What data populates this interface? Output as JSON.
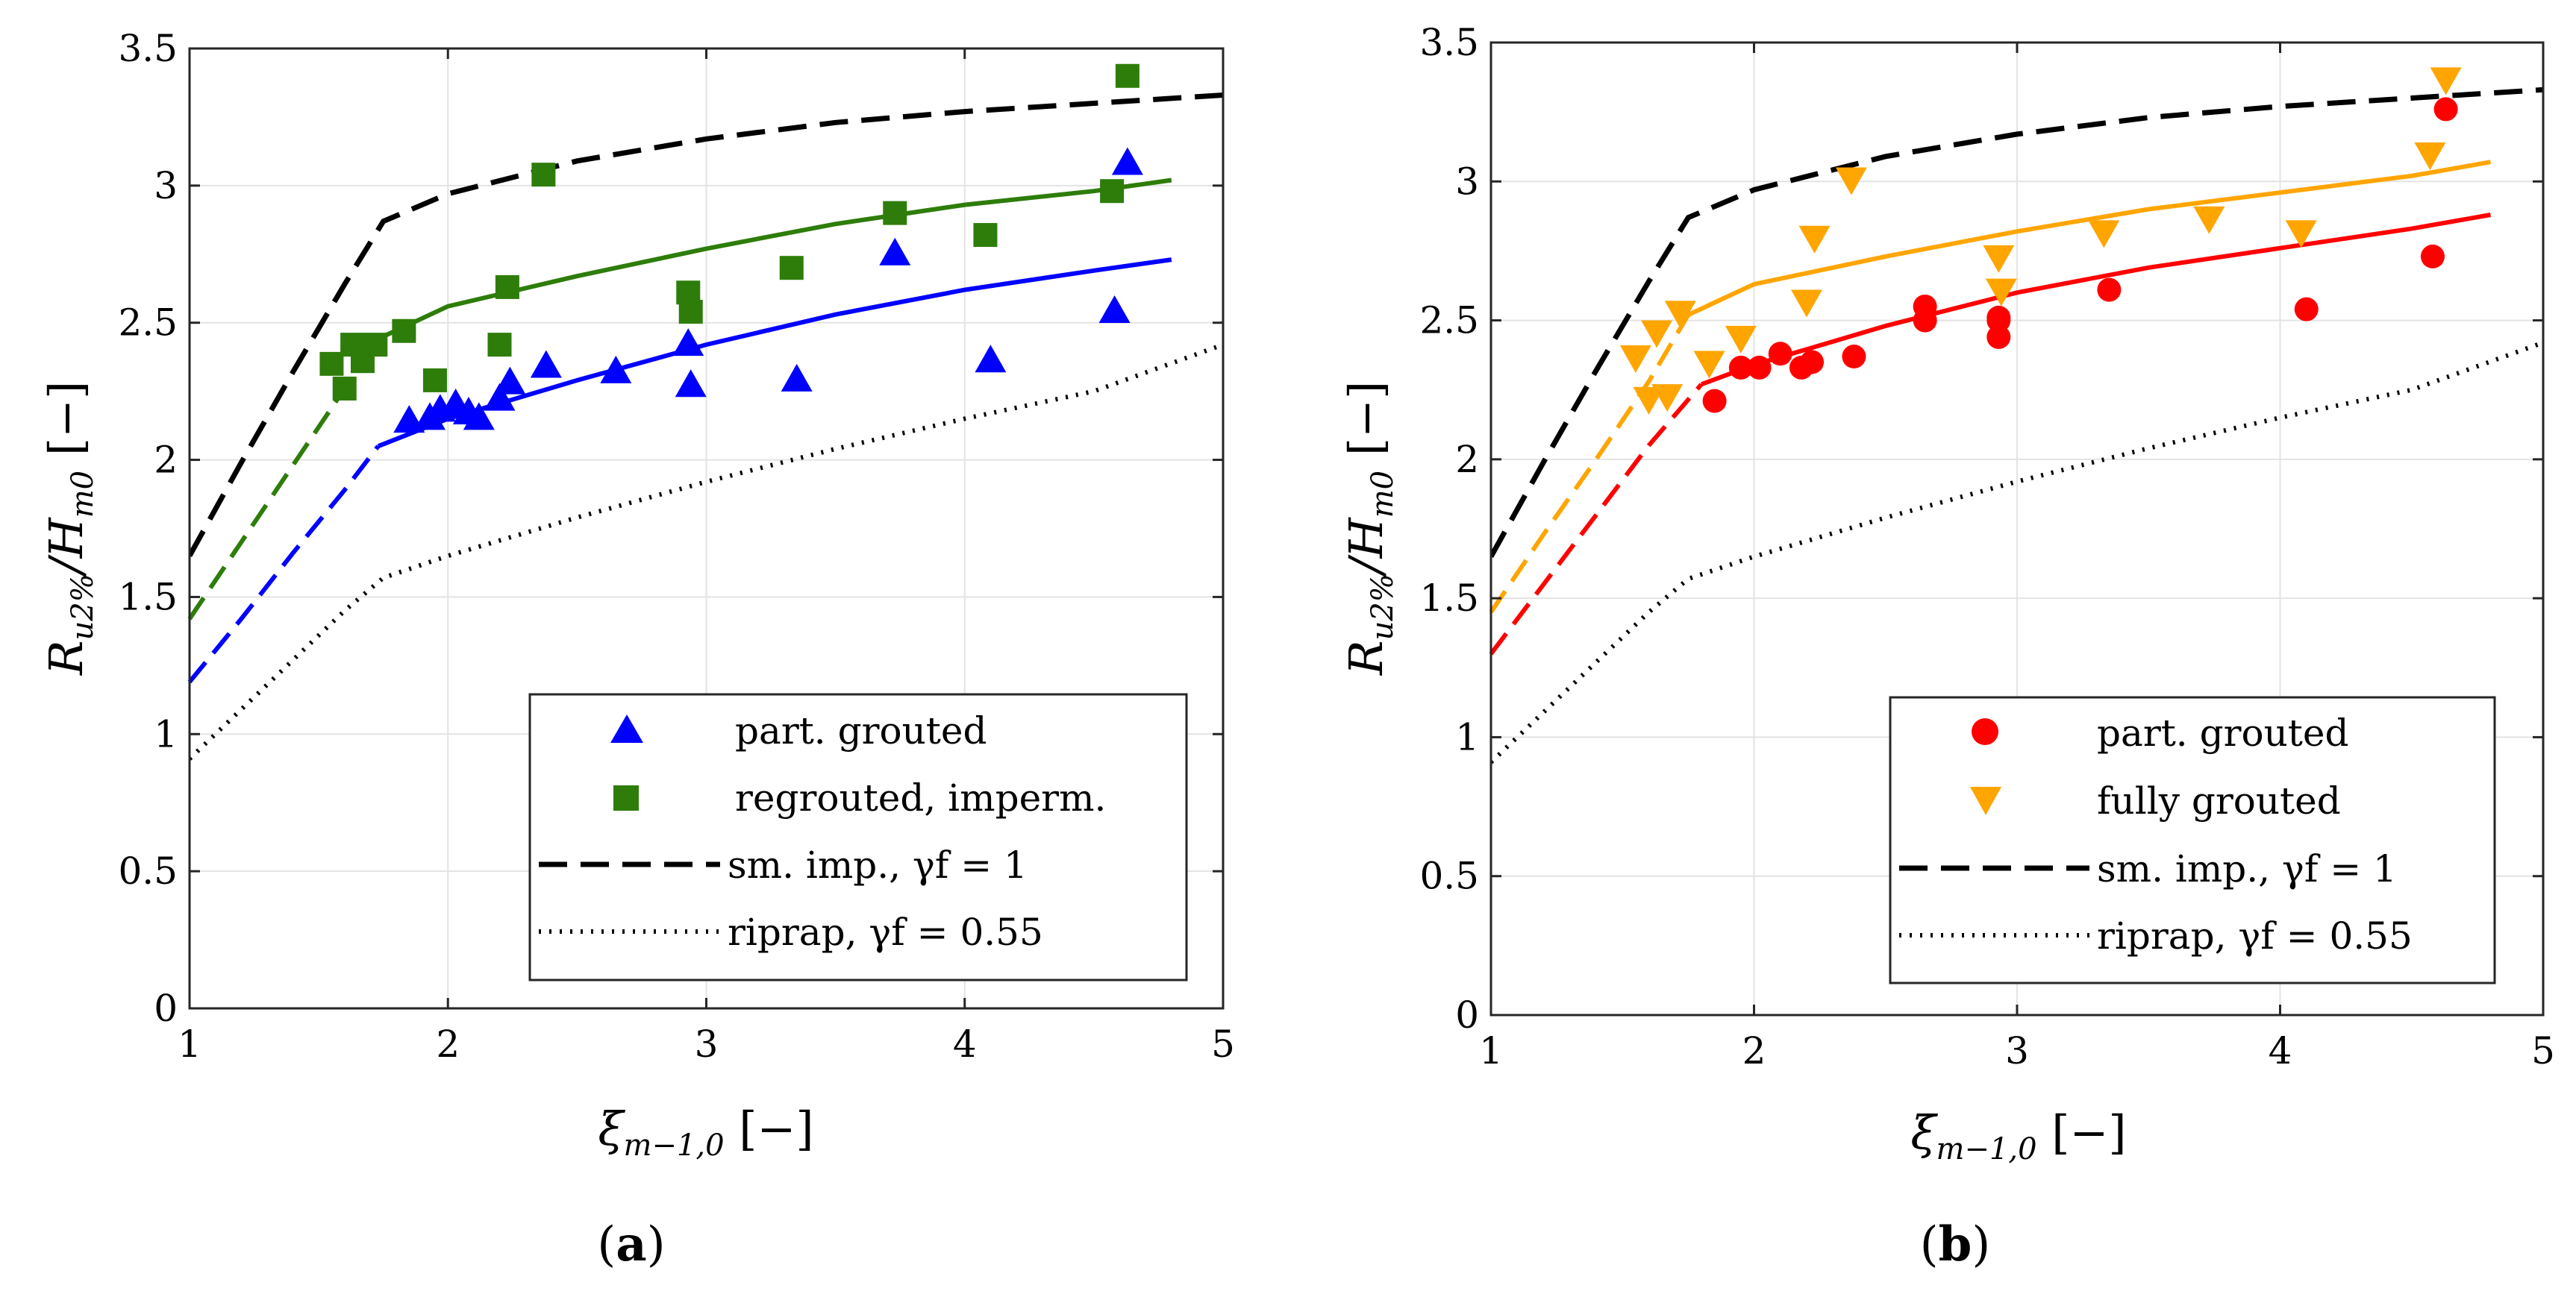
{
  "figure": {
    "captions": [
      "a",
      "b"
    ]
  },
  "chart_data": [
    {
      "type": "scatter",
      "title": "",
      "xlabel": "ξm−1,0 [−]",
      "ylabel": "Ru2%/Hm0 [−]",
      "xlim": [
        1,
        5
      ],
      "ylim": [
        0,
        3.5
      ],
      "x_ticks": [
        "1",
        "2",
        "3",
        "4",
        "5"
      ],
      "y_ticks": [
        "0",
        "0.5",
        "1",
        "1.5",
        "2",
        "2.5",
        "3",
        "3.5"
      ],
      "grid": true,
      "legend_position": "bottom-right",
      "series": [
        {
          "name": "part. grouted",
          "marker": "triangle-up",
          "color": "#0000ff",
          "x": [
            1.85,
            1.93,
            1.97,
            2.03,
            2.08,
            2.12,
            2.2,
            2.24,
            2.38,
            2.65,
            2.93,
            2.94,
            3.35,
            3.73,
            4.1,
            4.58,
            4.63
          ],
          "y": [
            2.14,
            2.15,
            2.18,
            2.2,
            2.17,
            2.15,
            2.22,
            2.28,
            2.34,
            2.32,
            2.42,
            2.27,
            2.29,
            2.75,
            2.36,
            2.54,
            3.08
          ]
        },
        {
          "name": "regrouted, imperm.",
          "marker": "square",
          "color": "#2e7d0a",
          "x": [
            1.55,
            1.6,
            1.63,
            1.67,
            1.72,
            1.83,
            1.95,
            2.2,
            2.23,
            2.37,
            2.93,
            2.94,
            3.33,
            3.73,
            4.08,
            4.57,
            4.63
          ],
          "y": [
            2.35,
            2.26,
            2.42,
            2.36,
            2.42,
            2.47,
            2.29,
            2.42,
            2.63,
            3.04,
            2.61,
            2.54,
            2.7,
            2.9,
            2.82,
            2.98,
            3.4
          ]
        },
        {
          "name": "sm. imp., γf = 1",
          "style": "dashed",
          "color": "#000000",
          "x": [
            1.0,
            1.2,
            1.4,
            1.6,
            1.75,
            2.0,
            2.5,
            3.0,
            3.5,
            4.0,
            4.5,
            5.0
          ],
          "y": [
            1.65,
            1.99,
            2.32,
            2.64,
            2.87,
            2.97,
            3.09,
            3.17,
            3.23,
            3.27,
            3.3,
            3.33
          ]
        },
        {
          "name": "riprap, γf = 0.55",
          "style": "dotted",
          "color": "#000000",
          "x": [
            1.0,
            1.2,
            1.4,
            1.6,
            1.75,
            2.0,
            2.5,
            3.0,
            3.5,
            4.0,
            4.5,
            5.0
          ],
          "y": [
            0.91,
            1.09,
            1.27,
            1.45,
            1.57,
            1.65,
            1.79,
            1.92,
            2.04,
            2.15,
            2.25,
            2.42
          ]
        }
      ],
      "fit_lines": [
        {
          "name": "part. grouted fit",
          "color": "#0000ff",
          "x": [
            1.0,
            1.2,
            1.4,
            1.6,
            1.73,
            2.0,
            2.5,
            3.0,
            3.5,
            4.0,
            4.5,
            4.8
          ],
          "y": [
            1.19,
            1.42,
            1.66,
            1.89,
            2.05,
            2.15,
            2.29,
            2.42,
            2.53,
            2.62,
            2.69,
            2.73
          ],
          "dashed_until_x": 1.73
        },
        {
          "name": "regrouted, imperm. fit",
          "color": "#2e7d0a",
          "x": [
            1.0,
            1.2,
            1.4,
            1.6,
            1.75,
            2.0,
            2.5,
            3.0,
            3.5,
            4.0,
            4.5,
            4.8
          ],
          "y": [
            1.42,
            1.7,
            1.98,
            2.26,
            2.45,
            2.56,
            2.67,
            2.77,
            2.86,
            2.93,
            2.98,
            3.02
          ],
          "dashed_until_x": 1.75
        }
      ]
    },
    {
      "type": "scatter",
      "title": "",
      "xlabel": "ξm−1,0 [−]",
      "ylabel": "Ru2%/Hm0 [−]",
      "xlim": [
        1,
        5
      ],
      "ylim": [
        0,
        3.5
      ],
      "x_ticks": [
        "1",
        "2",
        "3",
        "4",
        "5"
      ],
      "y_ticks": [
        "0",
        "0.5",
        "1",
        "1.5",
        "2",
        "2.5",
        "3",
        "3.5"
      ],
      "grid": true,
      "legend_position": "bottom-right",
      "series": [
        {
          "name": "part. grouted",
          "marker": "circle",
          "color": "#ff0000",
          "x": [
            1.85,
            1.95,
            2.02,
            2.1,
            2.18,
            2.22,
            2.38,
            2.65,
            2.65,
            2.93,
            2.93,
            2.93,
            3.35,
            4.1,
            4.58,
            4.63
          ],
          "y": [
            2.21,
            2.33,
            2.33,
            2.38,
            2.33,
            2.35,
            2.37,
            2.55,
            2.5,
            2.5,
            2.44,
            2.51,
            2.61,
            2.54,
            2.73,
            3.26
          ]
        },
        {
          "name": "fully grouted",
          "marker": "triangle-down",
          "color": "#ffa500",
          "x": [
            1.55,
            1.6,
            1.63,
            1.67,
            1.72,
            1.83,
            1.95,
            2.2,
            2.23,
            2.37,
            2.93,
            2.94,
            3.33,
            3.73,
            4.08,
            4.57,
            4.63
          ],
          "y": [
            2.37,
            2.22,
            2.46,
            2.23,
            2.53,
            2.35,
            2.44,
            2.57,
            2.8,
            3.01,
            2.73,
            2.61,
            2.82,
            2.87,
            2.82,
            3.1,
            3.37
          ]
        },
        {
          "name": "sm. imp., γf = 1",
          "style": "dashed",
          "color": "#000000",
          "x": [
            1.0,
            1.2,
            1.4,
            1.6,
            1.75,
            2.0,
            2.5,
            3.0,
            3.5,
            4.0,
            4.5,
            5.0
          ],
          "y": [
            1.65,
            1.99,
            2.32,
            2.64,
            2.87,
            2.97,
            3.09,
            3.17,
            3.23,
            3.27,
            3.3,
            3.33
          ]
        },
        {
          "name": "riprap, γf = 0.55",
          "style": "dotted",
          "color": "#000000",
          "x": [
            1.0,
            1.2,
            1.4,
            1.6,
            1.75,
            2.0,
            2.5,
            3.0,
            3.5,
            4.0,
            4.5,
            5.0
          ],
          "y": [
            0.91,
            1.09,
            1.27,
            1.45,
            1.57,
            1.65,
            1.79,
            1.92,
            2.04,
            2.15,
            2.25,
            2.42
          ]
        }
      ],
      "fit_lines": [
        {
          "name": "part. grouted fit",
          "color": "#ff0000",
          "x": [
            1.0,
            1.2,
            1.4,
            1.6,
            1.8,
            2.0,
            2.5,
            3.0,
            3.5,
            4.0,
            4.5,
            4.8
          ],
          "y": [
            1.3,
            1.55,
            1.8,
            2.05,
            2.27,
            2.34,
            2.48,
            2.6,
            2.69,
            2.76,
            2.83,
            2.88
          ],
          "dashed_until_x": 1.8
        },
        {
          "name": "fully grouted fit",
          "color": "#ffa500",
          "x": [
            1.0,
            1.2,
            1.4,
            1.6,
            1.75,
            2.0,
            2.5,
            3.0,
            3.5,
            4.0,
            4.5,
            4.8
          ],
          "y": [
            1.45,
            1.73,
            2.0,
            2.28,
            2.52,
            2.63,
            2.73,
            2.82,
            2.9,
            2.96,
            3.02,
            3.07
          ],
          "dashed_until_x": 1.75
        }
      ]
    }
  ]
}
